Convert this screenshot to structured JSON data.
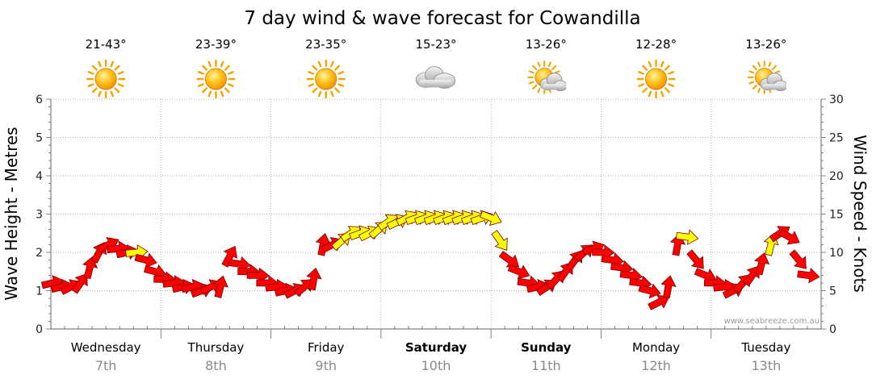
{
  "chart_data": {
    "type": "line",
    "title": "7 day wind & wave forecast for Cowandilla",
    "ylabel_left": "Wave Height - Metres",
    "ylabel_right": "Wind Speed - Knots",
    "ylim_left": [
      0,
      6
    ],
    "ylim_right": [
      0,
      30
    ],
    "yticks_left": [
      "0",
      "1",
      "2",
      "3",
      "4",
      "5",
      "6"
    ],
    "yticks_right": [
      "0",
      "5",
      "10",
      "15",
      "20",
      "25",
      "30"
    ],
    "credit": "www.seabreeze.com.au",
    "days": [
      {
        "name": "Wednesday",
        "date": "7th",
        "temp": "21-43°",
        "icon": "sun-icon",
        "bold": false
      },
      {
        "name": "Thursday",
        "date": "8th",
        "temp": "23-39°",
        "icon": "sun-icon",
        "bold": false
      },
      {
        "name": "Friday",
        "date": "9th",
        "temp": "23-35°",
        "icon": "sun-icon",
        "bold": false
      },
      {
        "name": "Saturday",
        "date": "10th",
        "temp": "15-23°",
        "icon": "cloud-icon",
        "bold": true
      },
      {
        "name": "Sunday",
        "date": "11th",
        "temp": "13-26°",
        "icon": "partly-cloudy-icon",
        "bold": true
      },
      {
        "name": "Monday",
        "date": "12th",
        "temp": "12-28°",
        "icon": "sun-icon",
        "bold": false
      },
      {
        "name": "Tuesday",
        "date": "13th",
        "temp": "13-26°",
        "icon": "partly-cloudy-icon",
        "bold": false
      }
    ],
    "series": [
      {
        "name": "Wind Speed (Knots)",
        "unit": "knots",
        "time_step_hours": 3,
        "values": [
          6,
          5.5,
          5.5,
          6,
          8,
          10,
          11,
          10.5,
          10,
          10,
          9,
          7.5,
          6.5,
          6,
          5.5,
          5.5,
          5,
          5.5,
          5.5,
          9.5,
          8.5,
          7.5,
          7,
          6,
          5.5,
          5,
          5,
          5.5,
          6.5,
          11,
          11,
          11.5,
          12.5,
          12.5,
          12.5,
          13,
          14,
          14,
          14.5,
          14.5,
          14.5,
          14.5,
          14.5,
          14.5,
          14.5,
          14.5,
          14.5,
          14.5,
          11.5,
          9,
          7.5,
          6,
          5.5,
          5.5,
          6.5,
          7.5,
          9,
          10,
          10.5,
          10,
          9,
          8,
          7,
          6,
          5,
          3.5,
          5.5,
          11,
          12,
          9,
          7,
          6,
          5.5,
          5,
          6,
          7,
          8.5,
          11,
          12.5,
          12,
          9,
          7
        ]
      }
    ],
    "wind_colors": {
      "strong": "#ff0000",
      "light": "#ffff00",
      "outline": "#7a0000"
    }
  }
}
